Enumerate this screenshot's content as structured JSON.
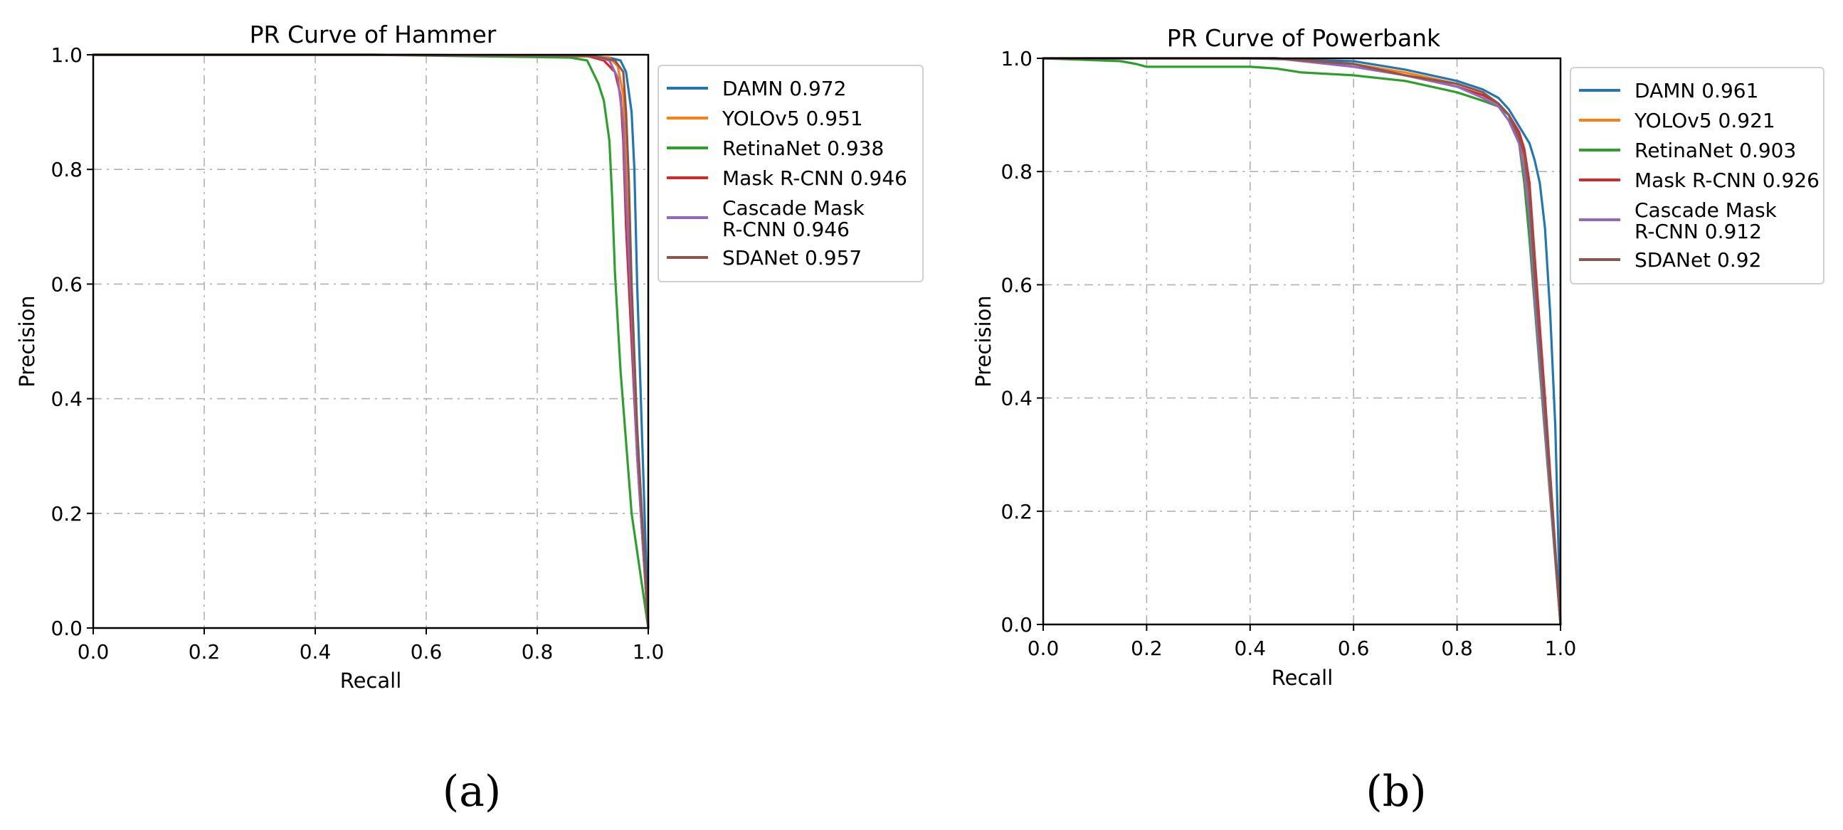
{
  "chart_data": [
    {
      "type": "line",
      "panel_label": "(a)",
      "title": "PR Curve of Hammer",
      "xlabel": "Recall",
      "ylabel": "Precision",
      "xlim": [
        0.0,
        1.0
      ],
      "ylim": [
        0.0,
        1.0
      ],
      "xticks": [
        "0.0",
        "0.2",
        "0.4",
        "0.6",
        "0.8",
        "1.0"
      ],
      "yticks": [
        "0.0",
        "0.2",
        "0.4",
        "0.6",
        "0.8",
        "1.0"
      ],
      "grid": true,
      "legend": "outside-right",
      "series": [
        {
          "name": "DAMN 0.972",
          "color": "#1f77b4",
          "x": [
            0,
            0.5,
            0.88,
            0.93,
            0.95,
            0.96,
            0.97,
            0.975,
            0.98,
            0.99,
            1.0
          ],
          "y": [
            1.0,
            1.0,
            0.998,
            0.995,
            0.99,
            0.97,
            0.9,
            0.8,
            0.6,
            0.3,
            0.0
          ]
        },
        {
          "name": "YOLOv5 0.951",
          "color": "#ff7f0e",
          "x": [
            0,
            0.5,
            0.89,
            0.93,
            0.945,
            0.955,
            0.96,
            0.97,
            0.98,
            1.0
          ],
          "y": [
            1.0,
            1.0,
            0.997,
            0.995,
            0.98,
            0.93,
            0.8,
            0.55,
            0.3,
            0.0
          ]
        },
        {
          "name": "RetinaNet 0.938",
          "color": "#2ca02c",
          "x": [
            0,
            0.5,
            0.86,
            0.89,
            0.9,
            0.91,
            0.92,
            0.93,
            0.935,
            0.94,
            0.95,
            0.97,
            1.0
          ],
          "y": [
            1.0,
            1.0,
            0.995,
            0.99,
            0.97,
            0.95,
            0.92,
            0.85,
            0.75,
            0.62,
            0.45,
            0.2,
            0.0
          ]
        },
        {
          "name": "Mask R-CNN 0.946",
          "color": "#d62728",
          "x": [
            0,
            0.5,
            0.89,
            0.92,
            0.94,
            0.95,
            0.955,
            0.96,
            0.97,
            0.98,
            1.0
          ],
          "y": [
            1.0,
            1.0,
            0.998,
            0.99,
            0.97,
            0.93,
            0.85,
            0.7,
            0.5,
            0.3,
            0.0
          ]
        },
        {
          "name": "Cascade Mask R-CNN 0.946",
          "color": "#9467bd",
          "x": [
            0,
            0.5,
            0.9,
            0.93,
            0.945,
            0.955,
            0.96,
            0.97,
            0.98,
            1.0
          ],
          "y": [
            1.0,
            1.0,
            0.998,
            0.99,
            0.96,
            0.88,
            0.75,
            0.55,
            0.3,
            0.0
          ]
        },
        {
          "name": "SDANet 0.957",
          "color": "#8c564b",
          "x": [
            0,
            0.5,
            0.9,
            0.94,
            0.955,
            0.96,
            0.965,
            0.97,
            0.98,
            1.0
          ],
          "y": [
            1.0,
            1.0,
            0.998,
            0.99,
            0.97,
            0.9,
            0.78,
            0.6,
            0.35,
            0.0
          ]
        }
      ]
    },
    {
      "type": "line",
      "panel_label": "(b)",
      "title": "PR Curve of Powerbank",
      "xlabel": "Recall",
      "ylabel": "Precision",
      "xlim": [
        0.0,
        1.0
      ],
      "ylim": [
        0.0,
        1.0
      ],
      "xticks": [
        "0.0",
        "0.2",
        "0.4",
        "0.6",
        "0.8",
        "1.0"
      ],
      "yticks": [
        "0.0",
        "0.2",
        "0.4",
        "0.6",
        "0.8",
        "1.0"
      ],
      "grid": true,
      "legend": "outside-right",
      "series": [
        {
          "name": "DAMN 0.961",
          "color": "#1f77b4",
          "x": [
            0,
            0.4,
            0.6,
            0.7,
            0.8,
            0.85,
            0.88,
            0.9,
            0.92,
            0.94,
            0.95,
            0.96,
            0.97,
            0.98,
            0.99,
            1.0
          ],
          "y": [
            1.0,
            1.0,
            0.995,
            0.98,
            0.96,
            0.945,
            0.93,
            0.91,
            0.88,
            0.85,
            0.82,
            0.78,
            0.7,
            0.55,
            0.35,
            0.0
          ]
        },
        {
          "name": "YOLOv5 0.921",
          "color": "#ff7f0e",
          "x": [
            0,
            0.45,
            0.6,
            0.7,
            0.8,
            0.85,
            0.88,
            0.9,
            0.92,
            0.93,
            0.94,
            0.95,
            0.97,
            1.0
          ],
          "y": [
            1.0,
            1.0,
            0.99,
            0.975,
            0.955,
            0.94,
            0.92,
            0.9,
            0.86,
            0.82,
            0.75,
            0.6,
            0.35,
            0.0
          ]
        },
        {
          "name": "RetinaNet 0.903",
          "color": "#2ca02c",
          "x": [
            0,
            0.15,
            0.18,
            0.2,
            0.3,
            0.4,
            0.45,
            0.5,
            0.6,
            0.7,
            0.75,
            0.8,
            0.85,
            0.88,
            0.9,
            0.92,
            0.93,
            0.94,
            0.96,
            1.0
          ],
          "y": [
            1.0,
            0.995,
            0.99,
            0.985,
            0.985,
            0.985,
            0.982,
            0.975,
            0.97,
            0.96,
            0.95,
            0.94,
            0.925,
            0.915,
            0.9,
            0.85,
            0.78,
            0.68,
            0.45,
            0.0
          ]
        },
        {
          "name": "Mask R-CNN 0.926",
          "color": "#d62728",
          "x": [
            0,
            0.45,
            0.6,
            0.7,
            0.8,
            0.85,
            0.88,
            0.9,
            0.92,
            0.93,
            0.94,
            0.95,
            0.97,
            1.0
          ],
          "y": [
            1.0,
            1.0,
            0.99,
            0.97,
            0.95,
            0.935,
            0.92,
            0.9,
            0.87,
            0.84,
            0.78,
            0.65,
            0.4,
            0.0
          ]
        },
        {
          "name": "Cascade Mask R-CNN 0.912",
          "color": "#9467bd",
          "x": [
            0,
            0.45,
            0.6,
            0.7,
            0.8,
            0.85,
            0.88,
            0.9,
            0.92,
            0.93,
            0.94,
            0.95,
            0.97,
            1.0
          ],
          "y": [
            1.0,
            1.0,
            0.985,
            0.97,
            0.95,
            0.93,
            0.915,
            0.89,
            0.85,
            0.8,
            0.72,
            0.58,
            0.35,
            0.0
          ]
        },
        {
          "name": "SDANet 0.92",
          "color": "#8c564b",
          "x": [
            0,
            0.45,
            0.6,
            0.7,
            0.8,
            0.85,
            0.88,
            0.9,
            0.92,
            0.93,
            0.94,
            0.95,
            0.97,
            1.0
          ],
          "y": [
            1.0,
            1.0,
            0.99,
            0.97,
            0.955,
            0.94,
            0.92,
            0.9,
            0.86,
            0.83,
            0.76,
            0.62,
            0.38,
            0.0
          ]
        }
      ]
    }
  ]
}
